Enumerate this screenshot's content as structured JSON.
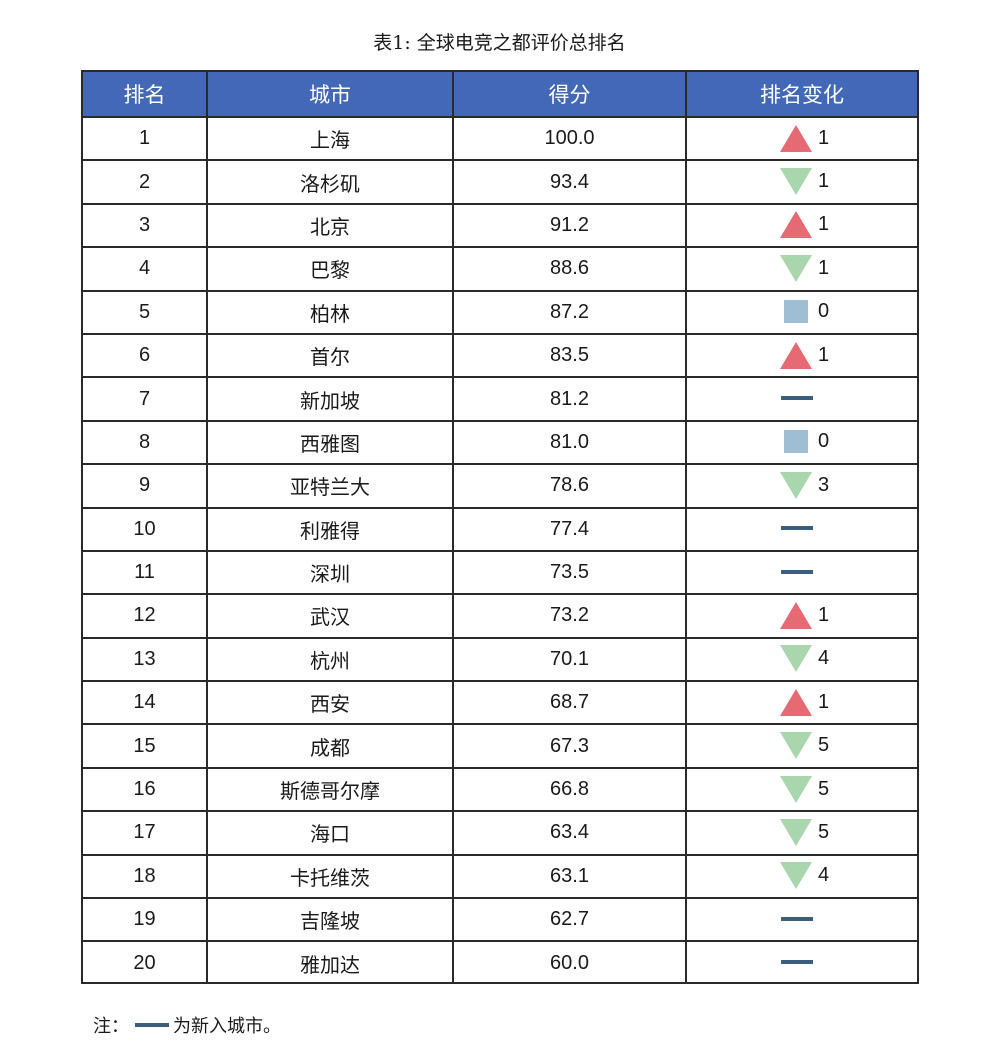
{
  "caption": "表1: 全球电竞之都评价总排名",
  "headers": [
    "排名",
    "城市",
    "得分",
    "排名变化"
  ],
  "colors": {
    "header_bg": "#4368b8",
    "up": "#e56a73",
    "down": "#a9d6ad",
    "same": "#9fbdd3",
    "new": "#3b5e7e"
  },
  "rows": [
    {
      "rank": "1",
      "city": "上海",
      "score": "100.0",
      "change": {
        "type": "up",
        "value": "1"
      }
    },
    {
      "rank": "2",
      "city": "洛杉矶",
      "score": "93.4",
      "change": {
        "type": "down",
        "value": "1"
      }
    },
    {
      "rank": "3",
      "city": "北京",
      "score": "91.2",
      "change": {
        "type": "up",
        "value": "1"
      }
    },
    {
      "rank": "4",
      "city": "巴黎",
      "score": "88.6",
      "change": {
        "type": "down",
        "value": "1"
      }
    },
    {
      "rank": "5",
      "city": "柏林",
      "score": "87.2",
      "change": {
        "type": "same",
        "value": "0"
      }
    },
    {
      "rank": "6",
      "city": "首尔",
      "score": "83.5",
      "change": {
        "type": "up",
        "value": "1"
      }
    },
    {
      "rank": "7",
      "city": "新加坡",
      "score": "81.2",
      "change": {
        "type": "new",
        "value": ""
      }
    },
    {
      "rank": "8",
      "city": "西雅图",
      "score": "81.0",
      "change": {
        "type": "same",
        "value": "0"
      }
    },
    {
      "rank": "9",
      "city": "亚特兰大",
      "score": "78.6",
      "change": {
        "type": "down",
        "value": "3"
      }
    },
    {
      "rank": "10",
      "city": "利雅得",
      "score": "77.4",
      "change": {
        "type": "new",
        "value": ""
      }
    },
    {
      "rank": "11",
      "city": "深圳",
      "score": "73.5",
      "change": {
        "type": "new",
        "value": ""
      }
    },
    {
      "rank": "12",
      "city": "武汉",
      "score": "73.2",
      "change": {
        "type": "up",
        "value": "1"
      }
    },
    {
      "rank": "13",
      "city": "杭州",
      "score": "70.1",
      "change": {
        "type": "down",
        "value": "4"
      }
    },
    {
      "rank": "14",
      "city": "西安",
      "score": "68.7",
      "change": {
        "type": "up",
        "value": "1"
      }
    },
    {
      "rank": "15",
      "city": "成都",
      "score": "67.3",
      "change": {
        "type": "down",
        "value": "5"
      }
    },
    {
      "rank": "16",
      "city": "斯德哥尔摩",
      "score": "66.8",
      "change": {
        "type": "down",
        "value": "5"
      }
    },
    {
      "rank": "17",
      "city": "海口",
      "score": "63.4",
      "change": {
        "type": "down",
        "value": "5"
      }
    },
    {
      "rank": "18",
      "city": "卡托维茨",
      "score": "63.1",
      "change": {
        "type": "down",
        "value": "4"
      }
    },
    {
      "rank": "19",
      "city": "吉隆坡",
      "score": "62.7",
      "change": {
        "type": "new",
        "value": ""
      }
    },
    {
      "rank": "20",
      "city": "雅加达",
      "score": "60.0",
      "change": {
        "type": "new",
        "value": ""
      }
    }
  ],
  "note": {
    "prefix": "注：",
    "text": "为新入城市。"
  }
}
